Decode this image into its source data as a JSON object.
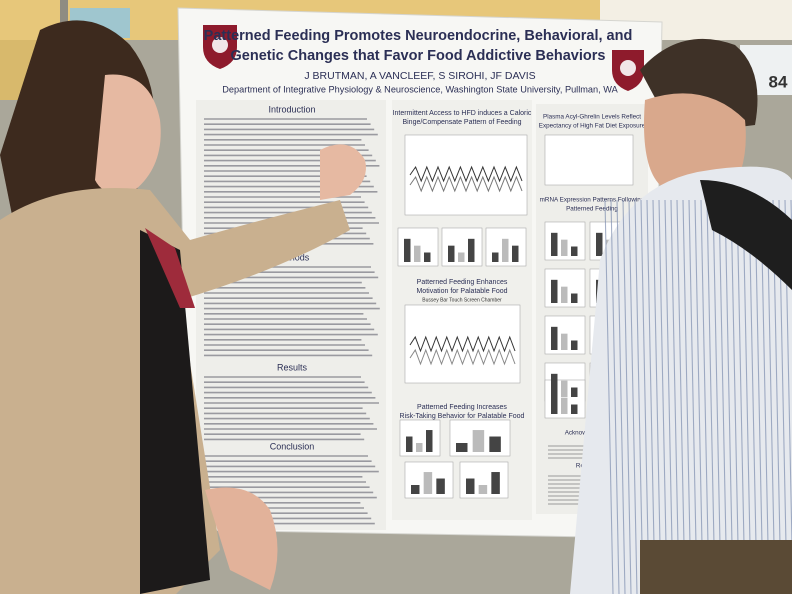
{
  "poster": {
    "title": [
      "Patterned Feeding Promotes Neuroendocrine, Behavioral, and",
      "Genetic Changes that Favor Food Addictive Behaviors"
    ],
    "authors": "J BRUTMAN, A VANCLEEF, S SIROHI, JF DAVIS",
    "department": "Department of Integrative Physiology & Neuroscience, Washington State University, Pullman, WA",
    "sections": [
      "Introduction",
      "Methods",
      "Results",
      "Conclusion"
    ],
    "middle_panels": [
      [
        "Intermittent Access to HFD induces a Caloric",
        "Binge/Compensate Pattern of Feeding"
      ],
      [
        "Patterned Feeding Enhances",
        "Motivation for Palatable Food"
      ],
      [
        "Patterned Feeding Increases",
        "Risk-Taking Behavior for Palatable Food"
      ]
    ],
    "chamber_label": "Bussey Bar Touch Screen Chamber",
    "right_panels": [
      [
        "Plasma Acyl-Ghrelin Levels Reflect",
        "Expectancy of High Fat Diet Exposure"
      ],
      [
        "mRNA Expression Patterns Following",
        "Patterned Feeding"
      ],
      [
        "Acknowledgements"
      ],
      [
        "References"
      ]
    ]
  },
  "board_number": "84"
}
